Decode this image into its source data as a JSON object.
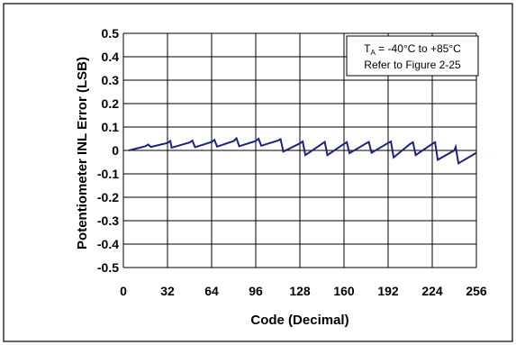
{
  "chart_data": {
    "type": "line",
    "xlabel": "Code (Decimal)",
    "ylabel": "Potentiometer INL Error (LSB)",
    "xlim": [
      0,
      256
    ],
    "ylim": [
      -0.5,
      0.5
    ],
    "x_ticks": [
      "0",
      "32",
      "64",
      "96",
      "128",
      "160",
      "192",
      "224",
      "256"
    ],
    "y_ticks": [
      "0.5",
      "0.4",
      "0.3",
      "0.2",
      "0.1",
      "0",
      "-0.1",
      "-0.2",
      "-0.3",
      "-0.4",
      "-0.5"
    ],
    "grid": true,
    "annotation": {
      "line1_main": "T",
      "line1_sub": "A",
      "line1_rest": " = -40°C to +85°C",
      "line2": "Refer to Figure 2-25"
    },
    "series": [
      {
        "color": "#1a237e",
        "x": [
          4,
          16,
          18,
          20,
          32,
          34,
          35,
          48,
          50,
          52,
          64,
          66,
          68,
          80,
          82,
          84,
          96,
          98,
          100,
          112,
          114,
          116,
          128,
          130,
          132,
          144,
          146,
          148,
          160,
          162,
          164,
          176,
          178,
          180,
          192,
          194,
          196,
          208,
          210,
          212,
          224,
          226,
          228,
          240,
          241,
          243,
          256
        ],
        "y": [
          0.0,
          0.018,
          0.025,
          0.015,
          0.032,
          0.04,
          0.012,
          0.034,
          0.042,
          0.014,
          0.036,
          0.045,
          0.016,
          0.04,
          0.052,
          0.018,
          0.04,
          0.05,
          0.02,
          0.042,
          0.048,
          -0.005,
          0.03,
          0.038,
          -0.02,
          0.028,
          0.036,
          -0.02,
          0.028,
          0.035,
          -0.012,
          0.03,
          0.036,
          -0.01,
          0.032,
          0.038,
          -0.03,
          0.028,
          0.035,
          -0.02,
          0.028,
          0.035,
          -0.04,
          0.0,
          0.015,
          -0.055,
          -0.01
        ]
      }
    ]
  }
}
